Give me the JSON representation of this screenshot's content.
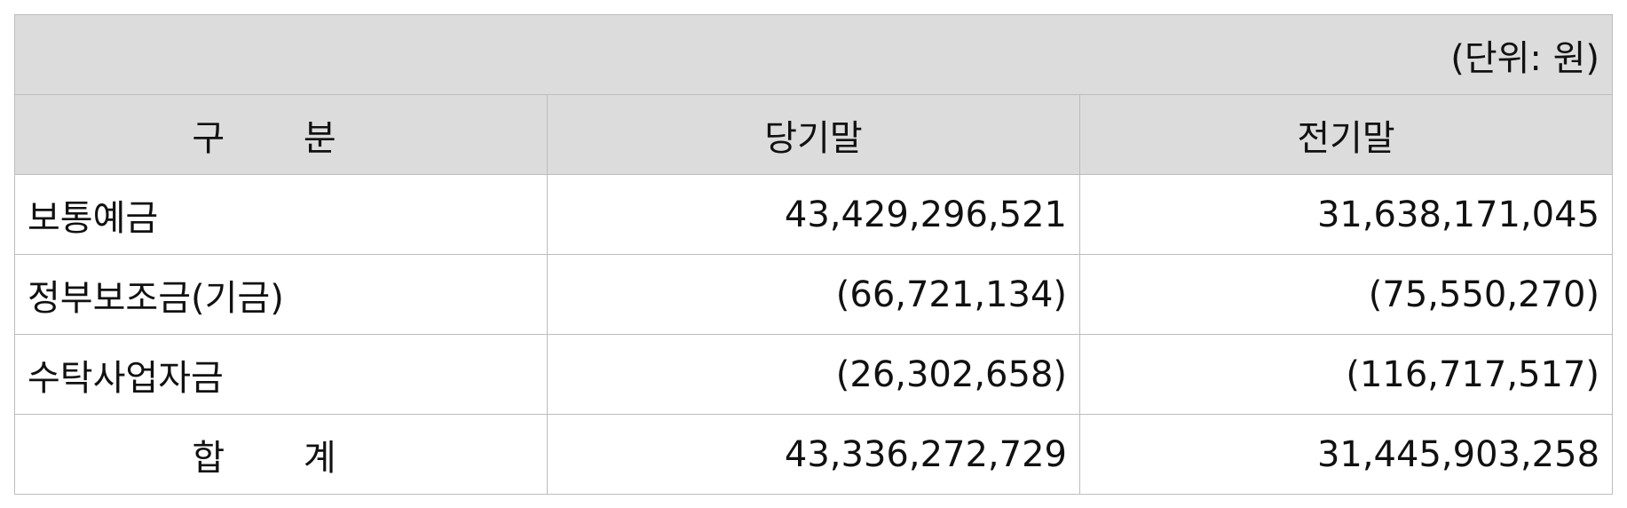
{
  "table": {
    "unit": "(단위: 원)",
    "headers": [
      "구 분",
      "당기말",
      "전기말"
    ],
    "rows": [
      {
        "label": "보통예금",
        "current": "43,429,296,521",
        "previous": "31,638,171,045"
      },
      {
        "label": "정부보조금(기금)",
        "current": "(66,721,134)",
        "previous": "(75,550,270)"
      },
      {
        "label": "수탁사업자금",
        "current": "(26,302,658)",
        "previous": "(116,717,517)"
      },
      {
        "label": "합 계",
        "current": "43,336,272,729",
        "previous": "31,445,903,258"
      }
    ]
  }
}
